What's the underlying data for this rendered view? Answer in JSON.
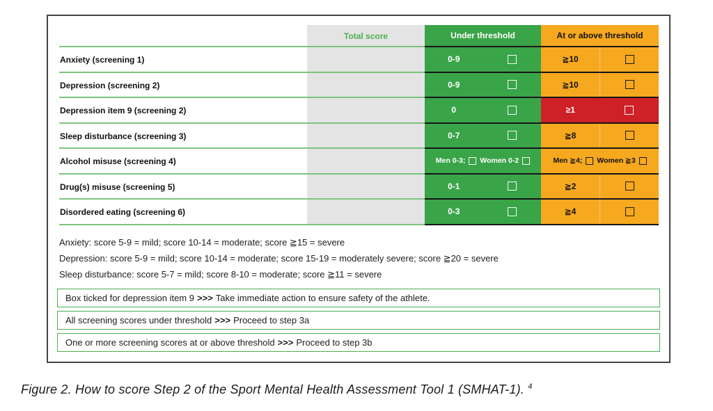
{
  "figure": {
    "table": {
      "headers": {
        "total_score": "Total score",
        "under_threshold": "Under threshold",
        "at_or_above_threshold": "At or above threshold"
      },
      "rows": [
        {
          "label": "Anxiety (screening 1)",
          "under": "0-9",
          "above": "≧10",
          "above_red": false
        },
        {
          "label": "Depression (screening 2)",
          "under": "0-9",
          "above": "≧10",
          "above_red": false
        },
        {
          "label": "Depression item 9 (screening 2)",
          "under": "0",
          "above": "≥1",
          "above_red": true
        },
        {
          "label": "Sleep disturbance (screening 3)",
          "under": "0-7",
          "above": "≧8",
          "above_red": false
        },
        {
          "label": "Alcohol misuse (screening 4)",
          "under_parts": [
            "Men 0-3;",
            "Women 0-2"
          ],
          "above_parts": [
            "Men ≧4;",
            "Women ≧3"
          ],
          "above_red": false
        },
        {
          "label": "Drug(s) misuse (screening 5)",
          "under": "0-1",
          "above": "≧2",
          "above_red": false
        },
        {
          "label": "Disordered eating (screening 6)",
          "under": "0-3",
          "above": "≧4",
          "above_red": false
        }
      ]
    },
    "notes": [
      "Anxiety: score 5-9 = mild; score 10-14 = moderate; score ≧15 = severe",
      "Depression: score 5-9 = mild; score 10-14 = moderate; score 15-19 = moderately severe; score ≧20 = severe",
      "Sleep disturbance: score 5-7 = mild; score 8-10 = moderate; score ≧11 = severe"
    ],
    "action_boxes": [
      {
        "condition": "Box ticked for depression item 9",
        "separator": ">>>",
        "action": "Take immediate action to ensure safety of the athlete."
      },
      {
        "condition": "All screening scores under threshold",
        "separator": ">>>",
        "action": "Proceed to step 3a"
      },
      {
        "condition": "One or more screening scores at or above threshold",
        "separator": ">>>",
        "action": "Proceed to step 3b"
      }
    ]
  },
  "caption": {
    "text": "Figure 2. How to score Step 2 of the Sport Mental Health Assessment Tool 1 (SMHAT-1).",
    "reference": "4"
  },
  "colors": {
    "green": "#3aa449",
    "orange": "#f6a81e",
    "red": "#ce2127",
    "gray": "#e4e4e4",
    "line_green": "#7cc47f",
    "box_border_green": "#4caf50",
    "total_text_green": "#4caf50"
  }
}
